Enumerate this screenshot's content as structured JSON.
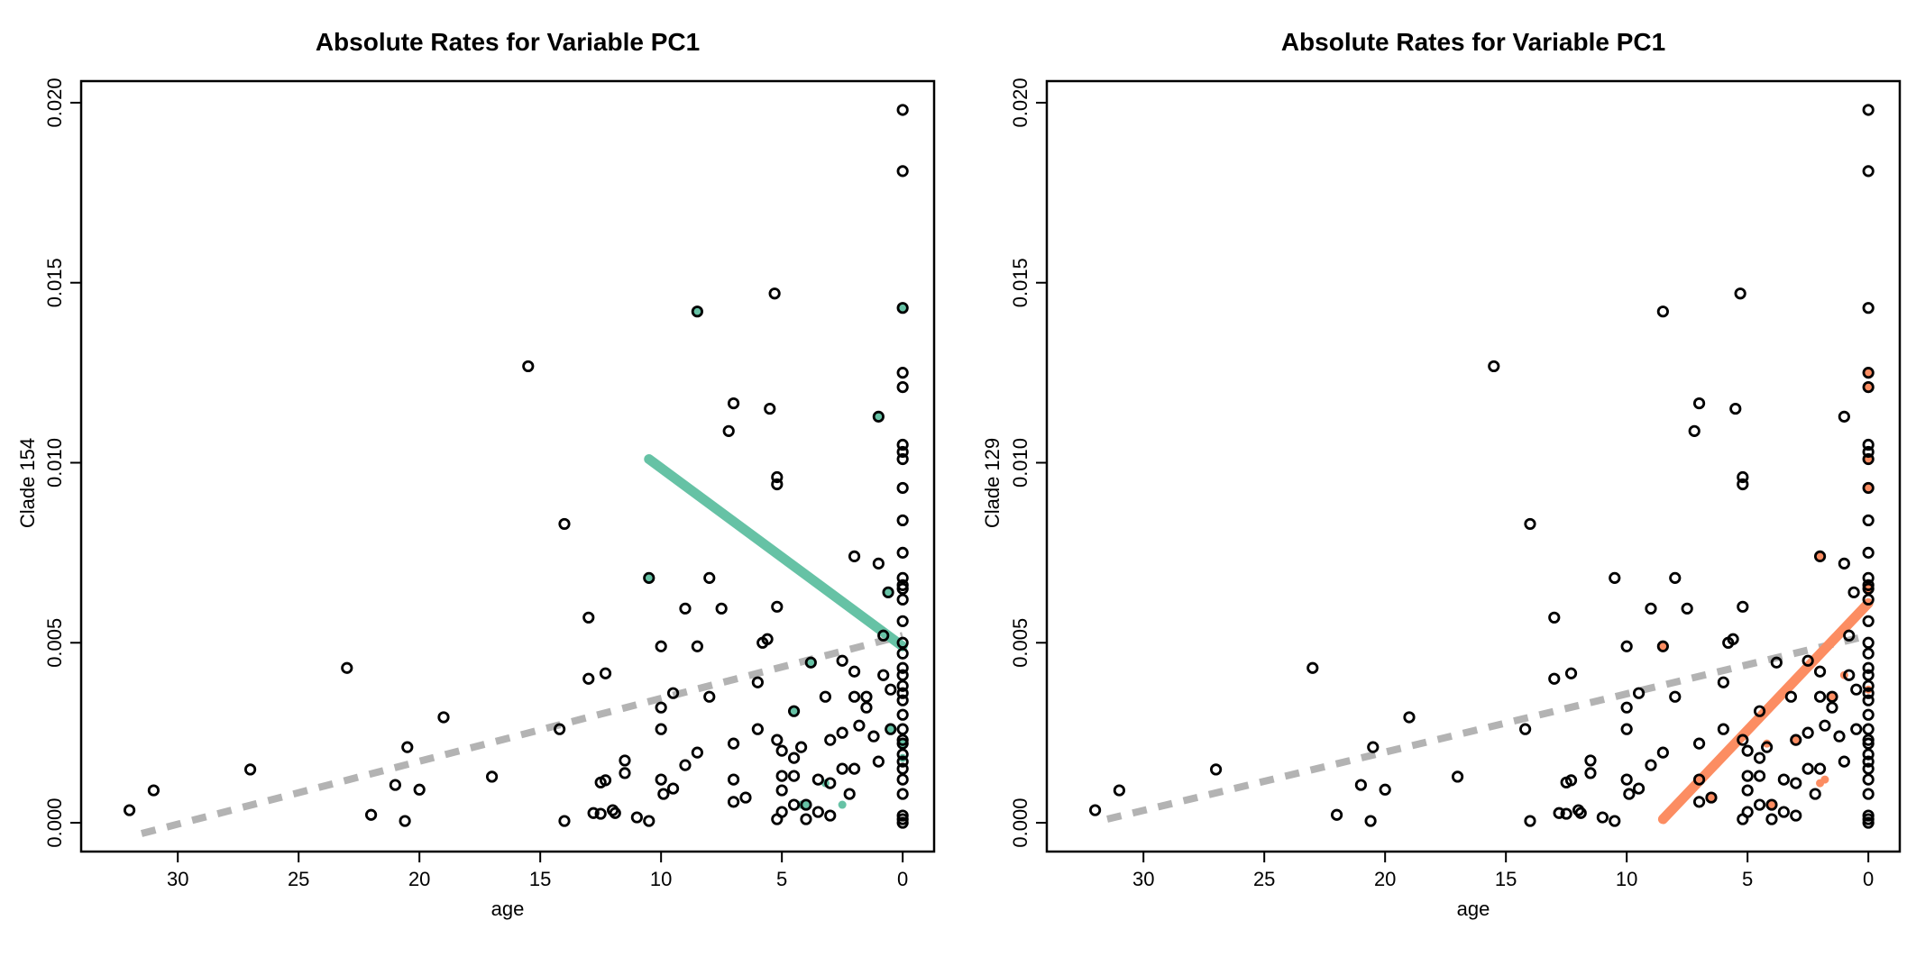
{
  "colors": {
    "background": "#ffffff",
    "points_stroke": "#000000",
    "trend_gray": "#b3b3b3",
    "clade_154": "#66c2a5",
    "clade_129": "#fc8d62"
  },
  "chart_data": [
    {
      "type": "scatter",
      "title": "Absolute Rates for Variable PC1",
      "xlabel": "age",
      "ylabel": "Clade 154",
      "xlim": [
        34,
        -1.3
      ],
      "ylim": [
        -0.0008,
        0.0206
      ],
      "x_ticks": [
        30,
        25,
        20,
        15,
        10,
        5,
        0
      ],
      "x_tick_labels": [
        "30",
        "25",
        "20",
        "15",
        "10",
        "5",
        "0"
      ],
      "y_ticks": [
        0.0,
        0.005,
        0.01,
        0.015,
        0.02
      ],
      "y_tick_labels": [
        "0.000",
        "0.005",
        "0.010",
        "0.015",
        "0.020"
      ],
      "grid": false,
      "highlight_color": "#66c2a5",
      "points": [
        [
          32.0,
          0.00035
        ],
        [
          31.0,
          0.0009
        ],
        [
          27.0,
          0.00148
        ],
        [
          23.0,
          0.0043
        ],
        [
          22.0,
          0.00022
        ],
        [
          21.0,
          0.00105
        ],
        [
          20.6,
          5e-05
        ],
        [
          20.5,
          0.0021
        ],
        [
          20.0,
          0.00092
        ],
        [
          19.0,
          0.00293
        ],
        [
          17.0,
          0.00128
        ],
        [
          15.5,
          0.01268
        ],
        [
          14.2,
          0.0026
        ],
        [
          14.0,
          0.0083
        ],
        [
          14.0,
          5e-05
        ],
        [
          13.0,
          0.0057
        ],
        [
          13.0,
          0.004
        ],
        [
          12.8,
          0.00027
        ],
        [
          12.5,
          0.00025
        ],
        [
          12.5,
          0.00112
        ],
        [
          12.3,
          0.00118
        ],
        [
          12.3,
          0.00415
        ],
        [
          12.0,
          0.00035
        ],
        [
          11.9,
          0.00027
        ],
        [
          11.5,
          0.00138
        ],
        [
          11.5,
          0.00173
        ],
        [
          11.0,
          0.00015
        ],
        [
          10.5,
          0.0068
        ],
        [
          10.5,
          5e-05
        ],
        [
          10.0,
          0.0049
        ],
        [
          10.0,
          0.0032
        ],
        [
          10.0,
          0.0026
        ],
        [
          10.0,
          0.0012
        ],
        [
          9.9,
          0.0008
        ],
        [
          9.5,
          0.0036
        ],
        [
          9.5,
          0.00095
        ],
        [
          9.0,
          0.00595
        ],
        [
          9.0,
          0.0016
        ],
        [
          8.5,
          0.0142
        ],
        [
          8.5,
          0.0049
        ],
        [
          8.5,
          0.00195
        ],
        [
          8.0,
          0.0068
        ],
        [
          8.0,
          0.0035
        ],
        [
          7.5,
          0.00595
        ],
        [
          7.0,
          0.01165
        ],
        [
          7.2,
          0.01088
        ],
        [
          7.0,
          0.0022
        ],
        [
          7.0,
          0.0012
        ],
        [
          7.0,
          0.00058
        ],
        [
          6.5,
          0.0007
        ],
        [
          6.0,
          0.0039
        ],
        [
          6.0,
          0.0026
        ],
        [
          5.8,
          0.005
        ],
        [
          5.6,
          0.0051
        ],
        [
          5.5,
          0.0115
        ],
        [
          5.3,
          0.0147
        ],
        [
          5.2,
          0.0096
        ],
        [
          5.2,
          0.0094
        ],
        [
          5.2,
          0.006
        ],
        [
          5.2,
          0.0023
        ],
        [
          5.0,
          0.002
        ],
        [
          5.0,
          0.0013
        ],
        [
          5.0,
          0.0009
        ],
        [
          5.0,
          0.0003
        ],
        [
          5.2,
          0.0001
        ],
        [
          4.5,
          0.0031
        ],
        [
          4.5,
          0.0018
        ],
        [
          4.5,
          0.0013
        ],
        [
          4.5,
          0.0005
        ],
        [
          4.2,
          0.0021
        ],
        [
          4.0,
          0.0005
        ],
        [
          4.0,
          0.0001
        ],
        [
          3.8,
          0.00445
        ],
        [
          3.5,
          0.0012
        ],
        [
          3.5,
          0.0003
        ],
        [
          3.2,
          0.0035
        ],
        [
          3.0,
          0.0023
        ],
        [
          3.0,
          0.0011
        ],
        [
          3.0,
          0.0002
        ],
        [
          2.5,
          0.0045
        ],
        [
          2.5,
          0.0025
        ],
        [
          2.5,
          0.0015
        ],
        [
          2.2,
          0.0008
        ],
        [
          2.0,
          0.0074
        ],
        [
          2.0,
          0.0042
        ],
        [
          2.0,
          0.0035
        ],
        [
          2.0,
          0.0015
        ],
        [
          1.8,
          0.0027
        ],
        [
          1.5,
          0.0035
        ],
        [
          1.5,
          0.0032
        ],
        [
          1.2,
          0.0024
        ],
        [
          1.0,
          0.01128
        ],
        [
          1.0,
          0.0072
        ],
        [
          1.0,
          0.0017
        ],
        [
          0.8,
          0.0052
        ],
        [
          0.8,
          0.0041
        ],
        [
          0.6,
          0.0064
        ],
        [
          0.5,
          0.0037
        ],
        [
          0.5,
          0.0026
        ],
        [
          0.0,
          0.0198
        ],
        [
          0.0,
          0.0181
        ],
        [
          0.0,
          0.0143
        ],
        [
          0.0,
          0.0125
        ],
        [
          0.0,
          0.0121
        ],
        [
          0.0,
          0.0105
        ],
        [
          0.0,
          0.0103
        ],
        [
          0.0,
          0.0101
        ],
        [
          0.0,
          0.0093
        ],
        [
          0.0,
          0.0084
        ],
        [
          0.0,
          0.0075
        ],
        [
          0.0,
          0.0068
        ],
        [
          0.0,
          0.0066
        ],
        [
          0.0,
          0.0065
        ],
        [
          0.0,
          0.0062
        ],
        [
          0.0,
          0.0056
        ],
        [
          0.0,
          0.005
        ],
        [
          0.0,
          0.0047
        ],
        [
          0.0,
          0.0043
        ],
        [
          0.0,
          0.0041
        ],
        [
          0.0,
          0.0038
        ],
        [
          0.0,
          0.0036
        ],
        [
          0.0,
          0.0034
        ],
        [
          0.0,
          0.003
        ],
        [
          0.0,
          0.0026
        ],
        [
          0.0,
          0.0023
        ],
        [
          0.0,
          0.0022
        ],
        [
          0.0,
          0.0019
        ],
        [
          0.0,
          0.0017
        ],
        [
          0.0,
          0.0015
        ],
        [
          0.0,
          0.0012
        ],
        [
          0.0,
          0.0008
        ],
        [
          0.0,
          0.0002
        ],
        [
          0.0,
          0.0001
        ],
        [
          0.0,
          0.0
        ]
      ],
      "highlighted_points": [
        [
          8.5,
          0.0142
        ],
        [
          10.5,
          0.0068
        ],
        [
          3.8,
          0.00445
        ],
        [
          4.5,
          0.0031
        ],
        [
          4.0,
          0.0005
        ],
        [
          4.2,
          0.0005
        ],
        [
          3.2,
          0.0011
        ],
        [
          2.5,
          0.0005
        ],
        [
          1.0,
          0.01128
        ],
        [
          0.6,
          0.0064
        ],
        [
          0.5,
          0.0026
        ],
        [
          0.0,
          0.0143
        ],
        [
          0.0,
          0.0022
        ],
        [
          0.0,
          0.0018
        ]
      ],
      "series": [
        {
          "x": [
            31.5,
            0.0
          ],
          "y": [
            -0.0003,
            0.0052
          ],
          "color": "#b3b3b3",
          "style": "dashed"
        },
        {
          "x": [
            10.5,
            0.0
          ],
          "y": [
            0.0101,
            0.0049
          ],
          "color": "#66c2a5",
          "style": "solid"
        }
      ]
    },
    {
      "type": "scatter",
      "title": "Absolute Rates for Variable PC1",
      "xlabel": "age",
      "ylabel": "Clade 129",
      "xlim": [
        34,
        -1.3
      ],
      "ylim": [
        -0.0008,
        0.0206
      ],
      "x_ticks": [
        30,
        25,
        20,
        15,
        10,
        5,
        0
      ],
      "x_tick_labels": [
        "30",
        "25",
        "20",
        "15",
        "10",
        "5",
        "0"
      ],
      "y_ticks": [
        0.0,
        0.005,
        0.01,
        0.015,
        0.02
      ],
      "y_tick_labels": [
        "0.000",
        "0.005",
        "0.010",
        "0.015",
        "0.020"
      ],
      "grid": false,
      "highlight_color": "#fc8d62",
      "points": [
        [
          32.0,
          0.00035
        ],
        [
          31.0,
          0.0009
        ],
        [
          27.0,
          0.00148
        ],
        [
          23.0,
          0.0043
        ],
        [
          22.0,
          0.00022
        ],
        [
          21.0,
          0.00105
        ],
        [
          20.6,
          5e-05
        ],
        [
          20.5,
          0.0021
        ],
        [
          20.0,
          0.00092
        ],
        [
          19.0,
          0.00293
        ],
        [
          17.0,
          0.00128
        ],
        [
          15.5,
          0.01268
        ],
        [
          14.2,
          0.0026
        ],
        [
          14.0,
          0.0083
        ],
        [
          14.0,
          5e-05
        ],
        [
          13.0,
          0.0057
        ],
        [
          13.0,
          0.004
        ],
        [
          12.8,
          0.00027
        ],
        [
          12.5,
          0.00025
        ],
        [
          12.5,
          0.00112
        ],
        [
          12.3,
          0.00118
        ],
        [
          12.3,
          0.00415
        ],
        [
          12.0,
          0.00035
        ],
        [
          11.9,
          0.00027
        ],
        [
          11.5,
          0.00138
        ],
        [
          11.5,
          0.00173
        ],
        [
          11.0,
          0.00015
        ],
        [
          10.5,
          0.0068
        ],
        [
          10.5,
          5e-05
        ],
        [
          10.0,
          0.0049
        ],
        [
          10.0,
          0.0032
        ],
        [
          10.0,
          0.0026
        ],
        [
          10.0,
          0.0012
        ],
        [
          9.9,
          0.0008
        ],
        [
          9.5,
          0.0036
        ],
        [
          9.5,
          0.00095
        ],
        [
          9.0,
          0.00595
        ],
        [
          9.0,
          0.0016
        ],
        [
          8.5,
          0.0142
        ],
        [
          8.5,
          0.0049
        ],
        [
          8.5,
          0.00195
        ],
        [
          8.0,
          0.0068
        ],
        [
          8.0,
          0.0035
        ],
        [
          7.5,
          0.00595
        ],
        [
          7.0,
          0.01165
        ],
        [
          7.2,
          0.01088
        ],
        [
          7.0,
          0.0022
        ],
        [
          7.0,
          0.0012
        ],
        [
          7.0,
          0.00058
        ],
        [
          6.5,
          0.0007
        ],
        [
          6.0,
          0.0039
        ],
        [
          6.0,
          0.0026
        ],
        [
          5.8,
          0.005
        ],
        [
          5.6,
          0.0051
        ],
        [
          5.5,
          0.0115
        ],
        [
          5.3,
          0.0147
        ],
        [
          5.2,
          0.0096
        ],
        [
          5.2,
          0.0094
        ],
        [
          5.2,
          0.006
        ],
        [
          5.2,
          0.0023
        ],
        [
          5.0,
          0.002
        ],
        [
          5.0,
          0.0013
        ],
        [
          5.0,
          0.0009
        ],
        [
          5.0,
          0.0003
        ],
        [
          5.2,
          0.0001
        ],
        [
          4.5,
          0.0031
        ],
        [
          4.5,
          0.0018
        ],
        [
          4.5,
          0.0013
        ],
        [
          4.5,
          0.0005
        ],
        [
          4.2,
          0.0021
        ],
        [
          4.0,
          0.0005
        ],
        [
          4.0,
          0.0001
        ],
        [
          3.8,
          0.00445
        ],
        [
          3.5,
          0.0012
        ],
        [
          3.5,
          0.0003
        ],
        [
          3.2,
          0.0035
        ],
        [
          3.0,
          0.0023
        ],
        [
          3.0,
          0.0011
        ],
        [
          3.0,
          0.0002
        ],
        [
          2.5,
          0.0045
        ],
        [
          2.5,
          0.0025
        ],
        [
          2.5,
          0.0015
        ],
        [
          2.2,
          0.0008
        ],
        [
          2.0,
          0.0074
        ],
        [
          2.0,
          0.0042
        ],
        [
          2.0,
          0.0035
        ],
        [
          2.0,
          0.0015
        ],
        [
          1.8,
          0.0027
        ],
        [
          1.5,
          0.0035
        ],
        [
          1.5,
          0.0032
        ],
        [
          1.2,
          0.0024
        ],
        [
          1.0,
          0.01128
        ],
        [
          1.0,
          0.0072
        ],
        [
          1.0,
          0.0017
        ],
        [
          0.8,
          0.0052
        ],
        [
          0.8,
          0.0041
        ],
        [
          0.6,
          0.0064
        ],
        [
          0.5,
          0.0037
        ],
        [
          0.5,
          0.0026
        ],
        [
          0.0,
          0.0198
        ],
        [
          0.0,
          0.0181
        ],
        [
          0.0,
          0.0143
        ],
        [
          0.0,
          0.0125
        ],
        [
          0.0,
          0.0121
        ],
        [
          0.0,
          0.0105
        ],
        [
          0.0,
          0.0103
        ],
        [
          0.0,
          0.0101
        ],
        [
          0.0,
          0.0093
        ],
        [
          0.0,
          0.0084
        ],
        [
          0.0,
          0.0075
        ],
        [
          0.0,
          0.0068
        ],
        [
          0.0,
          0.0066
        ],
        [
          0.0,
          0.0065
        ],
        [
          0.0,
          0.0062
        ],
        [
          0.0,
          0.0056
        ],
        [
          0.0,
          0.005
        ],
        [
          0.0,
          0.0047
        ],
        [
          0.0,
          0.0043
        ],
        [
          0.0,
          0.0041
        ],
        [
          0.0,
          0.0038
        ],
        [
          0.0,
          0.0036
        ],
        [
          0.0,
          0.0034
        ],
        [
          0.0,
          0.003
        ],
        [
          0.0,
          0.0026
        ],
        [
          0.0,
          0.0023
        ],
        [
          0.0,
          0.0022
        ],
        [
          0.0,
          0.0019
        ],
        [
          0.0,
          0.0017
        ],
        [
          0.0,
          0.0015
        ],
        [
          0.0,
          0.0012
        ],
        [
          0.0,
          0.0008
        ],
        [
          0.0,
          0.0002
        ],
        [
          0.0,
          0.0001
        ],
        [
          0.0,
          0.0
        ]
      ],
      "highlighted_points": [
        [
          8.5,
          0.0049
        ],
        [
          6.5,
          0.0007
        ],
        [
          4.2,
          0.0022
        ],
        [
          4.0,
          0.0005
        ],
        [
          3.0,
          0.0023
        ],
        [
          2.0,
          0.0074
        ],
        [
          2.0,
          0.0011
        ],
        [
          1.8,
          0.0012
        ],
        [
          1.5,
          0.0035
        ],
        [
          1.0,
          0.0041
        ],
        [
          0.0,
          0.0125
        ],
        [
          0.0,
          0.0121
        ],
        [
          0.0,
          0.0101
        ],
        [
          0.0,
          0.0093
        ],
        [
          0.0,
          0.0065
        ],
        [
          0.0,
          0.0037
        ]
      ],
      "series": [
        {
          "x": [
            31.5,
            0.0
          ],
          "y": [
            0.0001,
            0.0052
          ],
          "color": "#b3b3b3",
          "style": "dashed"
        },
        {
          "x": [
            8.5,
            0.0
          ],
          "y": [
            0.0001,
            0.0061
          ],
          "color": "#fc8d62",
          "style": "solid"
        }
      ]
    }
  ]
}
